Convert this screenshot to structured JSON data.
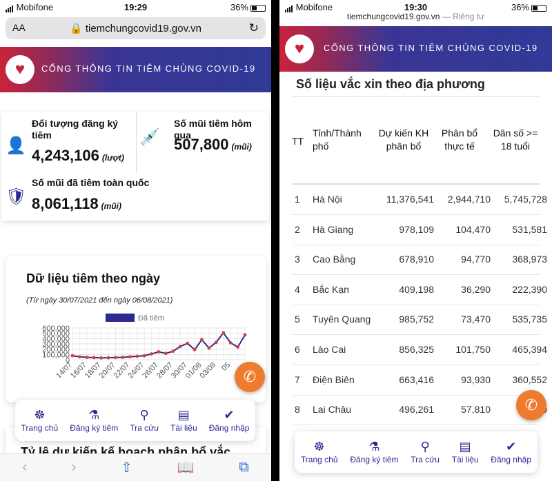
{
  "left": {
    "status": {
      "carrier": "Mobifone",
      "time": "19:29",
      "battery": "36%"
    },
    "browser": {
      "aa": "AA",
      "url": "tiemchungcovid19.gov.vn"
    },
    "banner": {
      "title": "CỔNG THÔNG TIN TIÊM CHỦNG COVID-19"
    },
    "stats": {
      "registered_label": "Đối tượng đăng ký tiêm",
      "registered_value": "4,243,106",
      "registered_unit": "(lượt)",
      "yesterday_label": "Số mũi tiêm hôm qua",
      "yesterday_value": "507,800",
      "yesterday_unit": "(mũi)",
      "total_label": "Số mũi đã tiêm toàn quốc",
      "total_value": "8,061,118",
      "total_unit": "(mũi)"
    },
    "chart_card": {
      "title": "Dữ liệu tiêm theo ngày",
      "subtitle": "(Từ ngày 30/07/2021 đến ngày 06/08/2021)"
    },
    "next_section": "Tỷ lệ dự kiến kế hoạch phân bổ vắc"
  },
  "chart_data": {
    "type": "line",
    "legend": "Đã tiêm",
    "series": [
      {
        "name": "Đã tiêm",
        "color": "#2d2a8f",
        "values": [
          75000,
          55000,
          45000,
          40000,
          35000,
          38000,
          42000,
          45000,
          55000,
          65000,
          75000,
          110000,
          150000,
          120000,
          160000,
          250000,
          310000,
          190000,
          380000,
          220000,
          330000,
          510000,
          320000,
          240000,
          470000
        ]
      }
    ],
    "yticks": [
      "600,000",
      "500,000",
      "400,000",
      "300,000",
      "200,000",
      "100,000",
      "0"
    ],
    "ylim": [
      0,
      600000
    ],
    "xticks": [
      "14/07",
      "16/07",
      "18/07",
      "20/07",
      "22/07",
      "24/07",
      "26/07",
      "28/07",
      "30/07",
      "01/08",
      "03/08",
      "05"
    ]
  },
  "right": {
    "status": {
      "carrier": "Mobifone",
      "time": "19:30",
      "battery": "36%"
    },
    "browser": {
      "url": "tiemchungcovid19.gov.vn",
      "private": "— Riêng tư"
    },
    "banner": {
      "title": "CỔNG THÔNG TIN TIÊM CHỦNG COVID-19"
    },
    "section_title": "Số liệu vắc xin theo địa phương",
    "headers": [
      "TT",
      "Tỉnh/Thành phố",
      "Dự kiến KH phân bổ",
      "Phân bổ thực tế",
      "Dân số >= 18 tuổi"
    ],
    "rows": [
      [
        "1",
        "Hà Nội",
        "11,376,541",
        "2,944,710",
        "5,745,728"
      ],
      [
        "2",
        "Hà Giang",
        "978,109",
        "104,470",
        "531,581"
      ],
      [
        "3",
        "Cao Bằng",
        "678,910",
        "94,770",
        "368,973"
      ],
      [
        "4",
        "Bắc Kạn",
        "409,198",
        "36,290",
        "222,390"
      ],
      [
        "5",
        "Tuyên Quang",
        "985,752",
        "73,470",
        "535,735"
      ],
      [
        "6",
        "Lào Cai",
        "856,325",
        "101,750",
        "465,394"
      ],
      [
        "7",
        "Điện Biên",
        "663,416",
        "93,930",
        "360,552"
      ],
      [
        "8",
        "Lai Châu",
        "496,261",
        "57,810",
        "269"
      ]
    ]
  },
  "nav": [
    {
      "label": "Trang chủ",
      "icon": "helm-icon"
    },
    {
      "label": "Đăng ký tiêm",
      "icon": "vaccine-icon"
    },
    {
      "label": "Tra cứu",
      "icon": "search-icon"
    },
    {
      "label": "Tài liệu",
      "icon": "document-icon"
    },
    {
      "label": "Đăng nhập",
      "icon": "user-check-icon"
    }
  ]
}
